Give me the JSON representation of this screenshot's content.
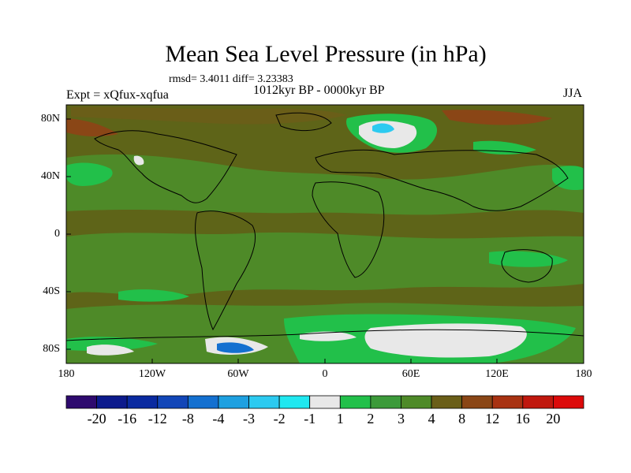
{
  "title": "Mean Sea Level Pressure (in hPa)",
  "stats": "rmsd= 3.4011 diff= 3.23383",
  "period": "1012kyr BP - 0000kyr BP",
  "experiment": "Expt = xQfux-xqfua",
  "season": "JJA",
  "axes": {
    "lat_ticks": [
      "80N",
      "40N",
      "0",
      "40S",
      "80S"
    ],
    "lon_ticks": [
      "180",
      "120W",
      "60W",
      "0",
      "60E",
      "120E",
      "180"
    ]
  },
  "colorbar": {
    "labels": [
      "-20",
      "-16",
      "-12",
      "-8",
      "-4",
      "-3",
      "-2",
      "-1",
      "1",
      "2",
      "3",
      "4",
      "8",
      "12",
      "16",
      "20"
    ],
    "colors": [
      "#2e0a6e",
      "#0c1a8c",
      "#0a2aa0",
      "#1246b8",
      "#1470d0",
      "#1ea0e0",
      "#2ccaf0",
      "#20e8f0",
      "#e8e8e8",
      "#22c04a",
      "#3c9a3a",
      "#4e8a28",
      "#6a5e18",
      "#8a4616",
      "#a83212",
      "#c0180e",
      "#dc0a0a"
    ]
  },
  "colors": {
    "background_field": "#5e6418",
    "positive_mid": "#4e8a28",
    "positive_low": "#3c9a3a",
    "positive_min": "#22c04a",
    "neutral": "#e8e8e8",
    "negative": "#1470d0",
    "positive_high": "#8a4616"
  }
}
